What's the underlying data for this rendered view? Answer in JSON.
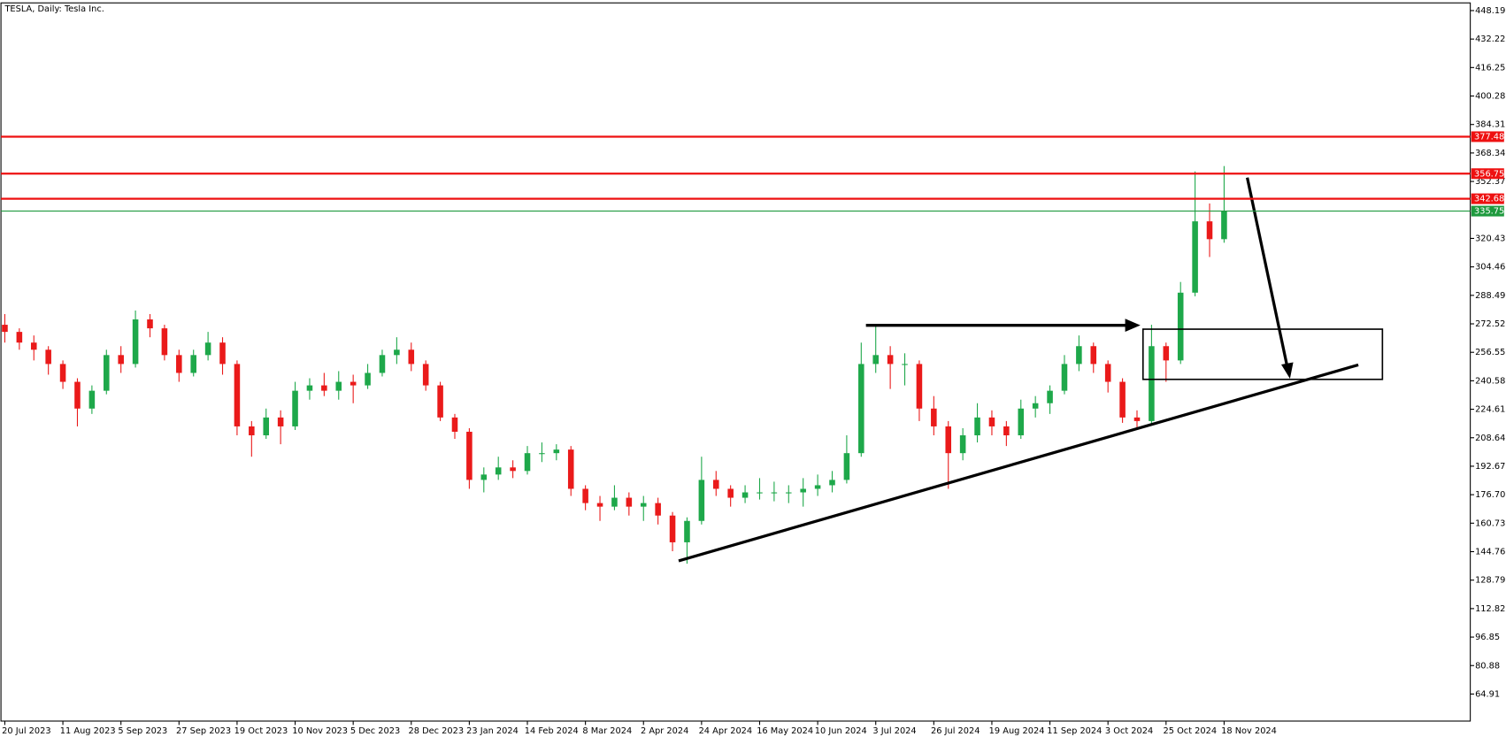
{
  "chart_data": {
    "type": "candlestick",
    "title": "TESLA, Daily:  Tesla Inc.",
    "categories": [
      "20 Jul 2023",
      null,
      null,
      null,
      "11 Aug 2023",
      null,
      null,
      null,
      "5 Sep 2023",
      null,
      null,
      null,
      "27 Sep 2023",
      null,
      null,
      null,
      "19 Oct 2023",
      null,
      null,
      null,
      "10 Nov 2023",
      null,
      null,
      null,
      "5 Dec 2023",
      null,
      null,
      null,
      "28 Dec 2023",
      null,
      null,
      null,
      "23 Jan 2024",
      null,
      null,
      null,
      "14 Feb 2024",
      null,
      null,
      null,
      "8 Mar 2024",
      null,
      null,
      null,
      "2 Apr 2024",
      null,
      null,
      null,
      "24 Apr 2024",
      null,
      null,
      null,
      "16 May 2024",
      null,
      null,
      null,
      "10 Jun 2024",
      null,
      null,
      null,
      "3 Jul 2024",
      null,
      null,
      null,
      "26 Jul 2024",
      null,
      null,
      null,
      "19 Aug 2024",
      null,
      null,
      null,
      "11 Sep 2024",
      null,
      null,
      null,
      "3 Oct 2024",
      null,
      null,
      null,
      "25 Oct 2024",
      null,
      null,
      null,
      "18 Nov 2024"
    ],
    "open": [
      272,
      268,
      262,
      258,
      250,
      240,
      225,
      235,
      255,
      250,
      275,
      270,
      255,
      245,
      255,
      262,
      250,
      215,
      210,
      220,
      215,
      235,
      238,
      235,
      240,
      238,
      245,
      255,
      258,
      250,
      238,
      220,
      212,
      185,
      188,
      192,
      190,
      200,
      200,
      202,
      180,
      172,
      170,
      175,
      170,
      172,
      165,
      150,
      162,
      185,
      180,
      175,
      178,
      178,
      178,
      178,
      180,
      182,
      185,
      200,
      250,
      255,
      250,
      250,
      225,
      215,
      200,
      210,
      220,
      215,
      210,
      225,
      228,
      235,
      250,
      260,
      250,
      240,
      220,
      218,
      260,
      252,
      290,
      330,
      320
    ],
    "high": [
      278,
      270,
      266,
      260,
      252,
      242,
      238,
      258,
      260,
      280,
      278,
      272,
      258,
      258,
      268,
      265,
      252,
      218,
      225,
      224,
      240,
      242,
      245,
      246,
      244,
      250,
      258,
      265,
      262,
      252,
      240,
      222,
      214,
      192,
      198,
      196,
      204,
      206,
      205,
      204,
      182,
      176,
      182,
      178,
      176,
      175,
      167,
      164,
      198,
      190,
      182,
      182,
      186,
      184,
      182,
      186,
      188,
      190,
      210,
      262,
      272,
      260,
      256,
      252,
      232,
      218,
      214,
      228,
      224,
      218,
      230,
      232,
      238,
      255,
      266,
      262,
      252,
      242,
      224,
      272,
      262,
      296,
      358,
      340,
      361
    ],
    "low": [
      262,
      258,
      252,
      244,
      236,
      215,
      222,
      233,
      245,
      248,
      265,
      252,
      240,
      243,
      252,
      244,
      210,
      198,
      208,
      205,
      213,
      230,
      232,
      230,
      228,
      236,
      243,
      250,
      246,
      235,
      218,
      208,
      180,
      178,
      185,
      186,
      188,
      195,
      196,
      176,
      168,
      162,
      168,
      165,
      162,
      160,
      145,
      138,
      160,
      176,
      170,
      172,
      174,
      173,
      172,
      170,
      176,
      178,
      183,
      198,
      245,
      236,
      238,
      218,
      210,
      180,
      196,
      206,
      210,
      204,
      208,
      220,
      222,
      233,
      246,
      245,
      234,
      217,
      214,
      216,
      240,
      250,
      288,
      310,
      318
    ],
    "close": [
      268,
      262,
      258,
      250,
      240,
      225,
      235,
      255,
      250,
      275,
      270,
      255,
      245,
      255,
      262,
      250,
      215,
      210,
      220,
      215,
      235,
      238,
      235,
      240,
      238,
      245,
      255,
      258,
      250,
      238,
      220,
      212,
      185,
      188,
      192,
      190,
      200,
      200,
      202,
      180,
      172,
      170,
      175,
      170,
      172,
      165,
      150,
      162,
      185,
      180,
      175,
      178,
      178,
      178,
      178,
      180,
      182,
      185,
      200,
      250,
      255,
      250,
      250,
      225,
      215,
      200,
      210,
      220,
      215,
      210,
      225,
      228,
      235,
      250,
      260,
      250,
      240,
      220,
      218,
      260,
      252,
      290,
      330,
      320,
      336
    ],
    "up_color": "#1ea84a",
    "down_color": "#ea1a1a",
    "ylim": [
      49.75,
      452.5
    ],
    "yticks": [
      448.19,
      432.22,
      416.25,
      400.28,
      384.31,
      368.34,
      352.37,
      320.43,
      304.46,
      288.49,
      272.52,
      256.55,
      240.58,
      224.61,
      208.64,
      192.67,
      {
        "value": 176.7,
        "label": "176.70"
      },
      160.73,
      144.76,
      128.79,
      112.82,
      96.85,
      80.88,
      64.91
    ],
    "levels": [
      {
        "value": 377.48,
        "color": "#ee1111"
      },
      {
        "value": 356.75,
        "color": "#ee1111"
      },
      {
        "value": 342.68,
        "color": "#ee1111"
      },
      {
        "value": 335.75,
        "color": "#1e9a3e"
      }
    ]
  }
}
